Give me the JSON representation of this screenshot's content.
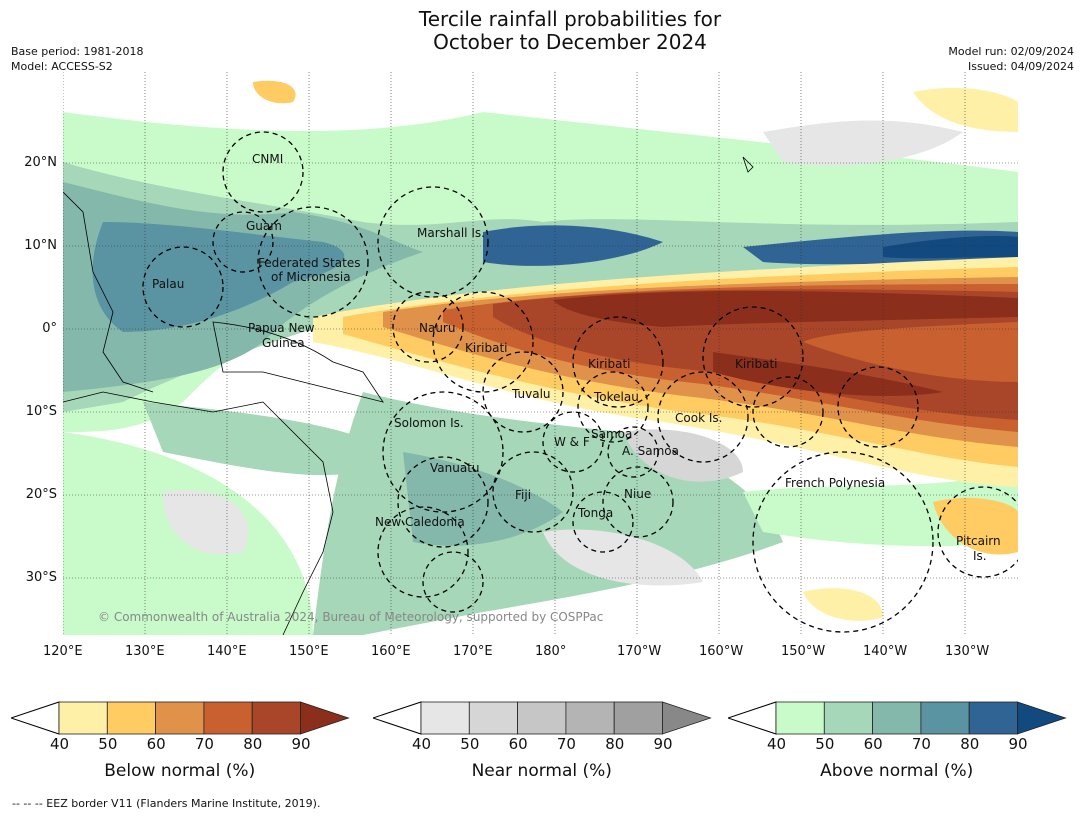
{
  "title_line1": "Tercile rainfall probabilities for",
  "title_line2": "October to December 2024",
  "base_period": "Base period: 1981-2018",
  "model": "Model: ACCESS-S2",
  "model_run": "Model run: 02/09/2024",
  "issued": "Issued: 04/09/2024",
  "copyright": "© Commonwealth of Australia 2024, Bureau of Meteorology, supported by COSPPac",
  "footnote": "--  --  -- EEZ border V11 (Flanders Marine Institute, 2019).",
  "lon_ticks": [
    {
      "v": 120,
      "t": "120°E"
    },
    {
      "v": 130,
      "t": "130°E"
    },
    {
      "v": 140,
      "t": "140°E"
    },
    {
      "v": 150,
      "t": "150°E"
    },
    {
      "v": 160,
      "t": "160°E"
    },
    {
      "v": 170,
      "t": "170°E"
    },
    {
      "v": 180,
      "t": "180°"
    },
    {
      "v": 190,
      "t": "170°W"
    },
    {
      "v": 200,
      "t": "160°W"
    },
    {
      "v": 210,
      "t": "150°W"
    },
    {
      "v": 220,
      "t": "140°W"
    },
    {
      "v": 230,
      "t": "130°W"
    }
  ],
  "lat_ticks": [
    {
      "v": 20,
      "t": "20°N"
    },
    {
      "v": 10,
      "t": "10°N"
    },
    {
      "v": 0,
      "t": "0°"
    },
    {
      "v": -10,
      "t": "10°S"
    },
    {
      "v": -20,
      "t": "20°S"
    },
    {
      "v": -30,
      "t": "30°S"
    }
  ],
  "regions": [
    "CNMI",
    "Guam",
    "Marshall Is.",
    "Federated States",
    "of Micronesia",
    "Palau",
    "Papua New",
    "Guinea",
    "Nauru",
    "Kiribati",
    "Kiribati",
    "Kiribati",
    "Tuvalu",
    "Tokelau",
    "Cook Is.",
    "Solomon Is.",
    "W & F",
    "Samoa",
    "A. Samoa",
    "Vanuatu",
    "Fiji",
    "Niue",
    "Tonga",
    "French Polynesia",
    "New Caledonia",
    "Pitcairn",
    "Is."
  ],
  "colorbars": [
    {
      "label": "Below normal (%)",
      "ticks": [
        "40",
        "50",
        "60",
        "70",
        "80",
        "90"
      ],
      "colors": [
        "#fff0a8",
        "#fecc62",
        "#e0924a",
        "#c8602f",
        "#a9462a",
        "#8b2e1c"
      ]
    },
    {
      "label": "Near normal (%)",
      "ticks": [
        "40",
        "50",
        "60",
        "70",
        "80",
        "90"
      ],
      "colors": [
        "#e6e6e6",
        "#d6d6d6",
        "#c6c6c6",
        "#b4b4b4",
        "#a0a0a0",
        "#888888"
      ]
    },
    {
      "label": "Above normal (%)",
      "ticks": [
        "40",
        "50",
        "60",
        "70",
        "80",
        "90"
      ],
      "colors": [
        "#c9fbca",
        "#a5d7b8",
        "#83b8aa",
        "#5a93a1",
        "#306494",
        "#12497f"
      ]
    }
  ]
}
